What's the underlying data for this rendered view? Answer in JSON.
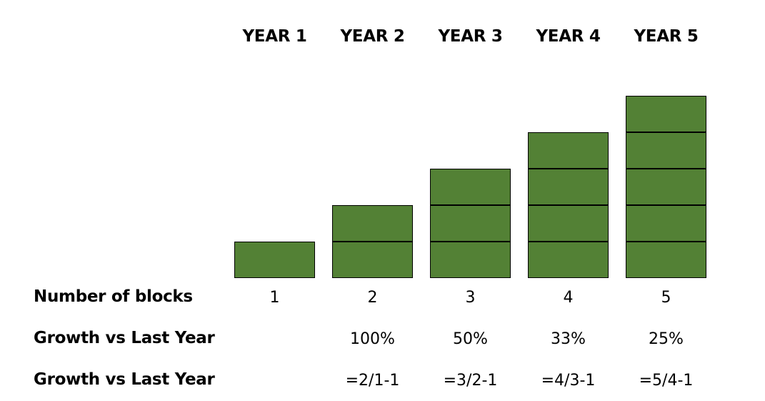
{
  "years": [
    "YEAR 1",
    "YEAR 2",
    "YEAR 3",
    "YEAR 4",
    "YEAR 5"
  ],
  "block_counts": [
    1,
    2,
    3,
    4,
    5
  ],
  "block_color": "#538135",
  "rows": {
    "blocks": {
      "label": "Number of blocks",
      "values": [
        "1",
        "2",
        "3",
        "4",
        "5"
      ]
    },
    "growth": {
      "label": "Growth vs Last Year",
      "values": [
        "",
        "100%",
        "50%",
        "33%",
        "25%"
      ]
    },
    "formula": {
      "label": "Growth vs Last Year",
      "values": [
        "",
        "=2/1-1",
        "=3/2-1",
        "=4/3-1",
        "=5/4-1"
      ]
    }
  }
}
